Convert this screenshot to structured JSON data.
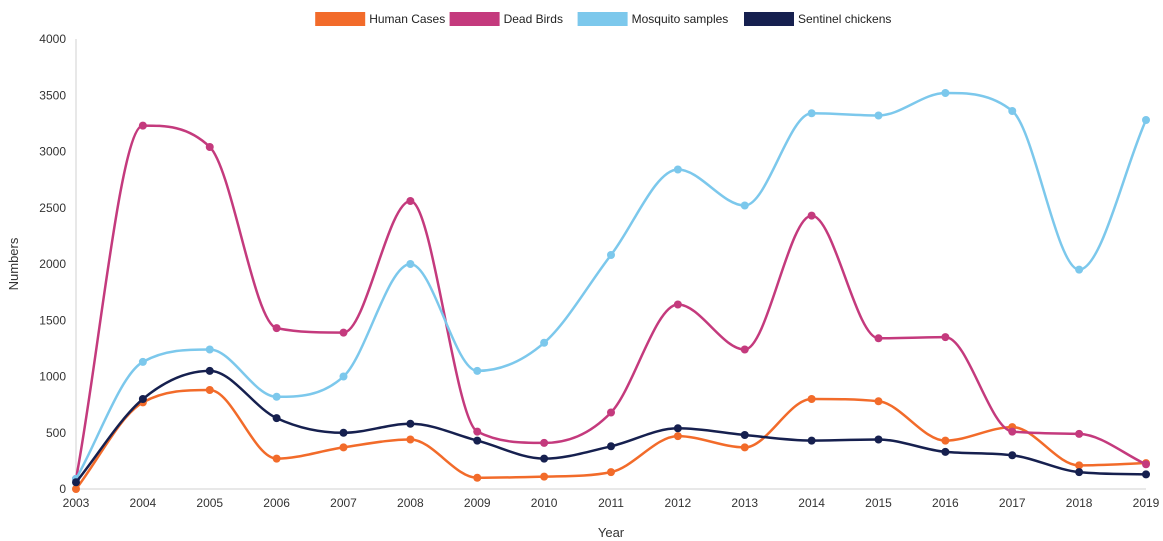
{
  "chart_data": {
    "type": "line",
    "title": "",
    "xlabel": "Year",
    "ylabel": "Numbers",
    "x": [
      "2003",
      "2004",
      "2005",
      "2006",
      "2007",
      "2008",
      "2009",
      "2010",
      "2011",
      "2012",
      "2013",
      "2014",
      "2015",
      "2016",
      "2017",
      "2018",
      "2019"
    ],
    "ylim": [
      0,
      4000
    ],
    "yticks": [
      0,
      500,
      1000,
      1500,
      2000,
      2500,
      3000,
      3500,
      4000
    ],
    "grid": false,
    "legend_position": "top-center",
    "series": [
      {
        "name": "Human Cases",
        "color": "#f26b2a",
        "values": [
          0,
          770,
          880,
          270,
          370,
          440,
          100,
          110,
          150,
          470,
          370,
          800,
          780,
          430,
          550,
          210,
          230
        ]
      },
      {
        "name": "Dead Birds",
        "color": "#c43a7d",
        "values": [
          90,
          3230,
          3040,
          1430,
          1390,
          2560,
          510,
          410,
          680,
          1640,
          1240,
          2430,
          1340,
          1350,
          510,
          490,
          220
        ]
      },
      {
        "name": "Mosquito samples",
        "color": "#7cc8ec",
        "values": [
          90,
          1130,
          1240,
          820,
          1000,
          2000,
          1050,
          1300,
          2080,
          2840,
          2520,
          3340,
          3320,
          3520,
          3360,
          1950,
          3280
        ]
      },
      {
        "name": "Sentinel chickens",
        "color": "#16204f",
        "values": [
          60,
          800,
          1050,
          630,
          500,
          580,
          430,
          270,
          380,
          540,
          480,
          430,
          440,
          330,
          300,
          150,
          130
        ]
      }
    ]
  }
}
